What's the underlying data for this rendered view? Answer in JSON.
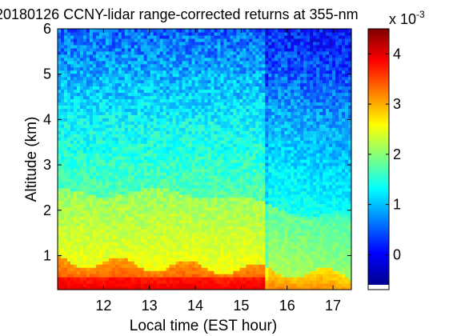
{
  "chart_data": {
    "type": "heatmap",
    "title": "20180126 CCNY-lidar range-corrected returns at 355-nm",
    "xlabel": "Local time (EST hour)",
    "ylabel": "Altitude (km)",
    "xlim": [
      11.0,
      17.4
    ],
    "ylim": [
      0.25,
      6.0
    ],
    "x_ticks": [
      12,
      13,
      14,
      15,
      16,
      17
    ],
    "y_ticks": [
      1,
      2,
      3,
      4,
      5,
      6
    ],
    "x_tick_labels": [
      "12",
      "13",
      "14",
      "15",
      "16",
      "17"
    ],
    "y_tick_labels": [
      "1",
      "2",
      "3",
      "4",
      "5",
      "6"
    ],
    "colorbar": {
      "range": [
        -0.6,
        4.5
      ],
      "ticks": [
        0,
        1,
        2,
        3,
        4
      ],
      "tick_labels": [
        "0",
        "1",
        "2",
        "3",
        "4"
      ],
      "exponent_label": "x 10",
      "exponent_power": "-3",
      "colormap": "jet"
    },
    "grid": false,
    "features": {
      "cloud_gap_time": 15.55,
      "upper_layer_top_km": 2.4,
      "boundary_layer_top_km": 0.8
    }
  }
}
